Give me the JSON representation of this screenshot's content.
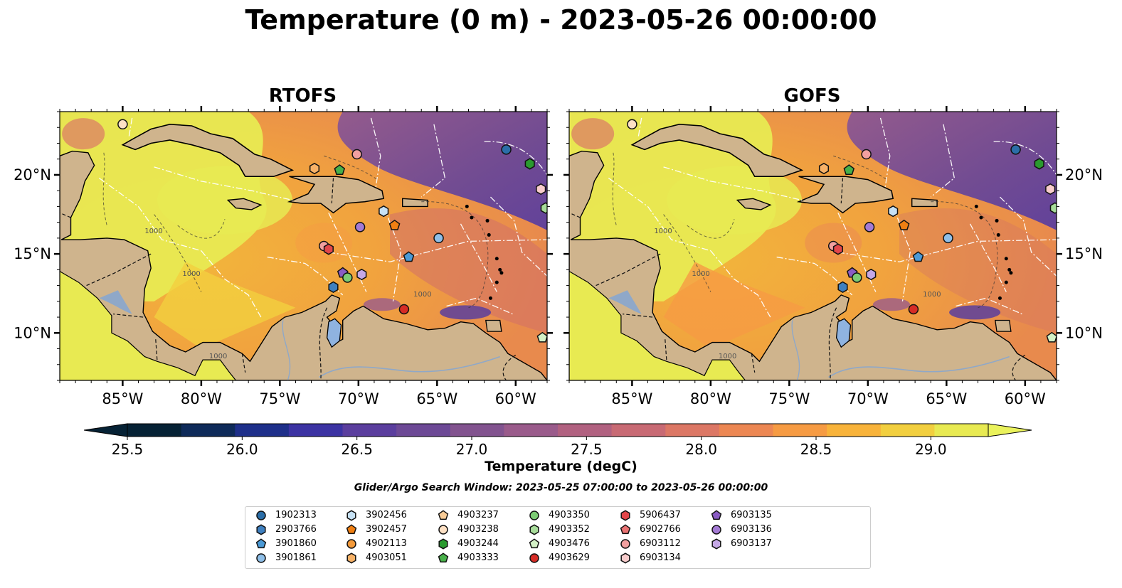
{
  "title": "Temperature (0 m) - 2023-05-26 00:00:00",
  "panels": [
    {
      "title": "RTOFS"
    },
    {
      "title": "GOFS"
    }
  ],
  "map": {
    "lon_range": [
      -89,
      -58
    ],
    "lat_range": [
      7,
      24
    ],
    "lon_ticks": [
      "85°W",
      "80°W",
      "75°W",
      "70°W",
      "65°W",
      "60°W"
    ],
    "lat_ticks": [
      "20°N",
      "15°N",
      "10°N"
    ],
    "land_color": "#cfb48d",
    "isobath_labels": [
      "1000",
      "1000",
      "1000",
      "1000"
    ]
  },
  "colorbar": {
    "label": "Temperature (degC)",
    "ticks": [
      "25.5",
      "26.0",
      "26.5",
      "27.0",
      "27.5",
      "28.0",
      "28.5",
      "29.0"
    ],
    "range": [
      25.5,
      29.25
    ],
    "colors": [
      "#062235",
      "#0e2a59",
      "#1e2f8a",
      "#3c33a3",
      "#5b3e9e",
      "#6d4996",
      "#82538f",
      "#9a5b8b",
      "#b16180",
      "#c86a74",
      "#dc7765",
      "#ec8753",
      "#f69b43",
      "#f8b33a",
      "#f2cf3f",
      "#e8ea52"
    ]
  },
  "search_window": "Glider/Argo Search Window: 2023-05-25 07:00:00 to 2023-05-26 00:00:00",
  "legend": [
    {
      "id": "1902313",
      "color": "#2b6ea8",
      "shape": "circle"
    },
    {
      "id": "2903766",
      "color": "#3f80c0",
      "shape": "hexagon"
    },
    {
      "id": "3901860",
      "color": "#4b9ad6",
      "shape": "pentagon"
    },
    {
      "id": "3901861",
      "color": "#8fbfe8",
      "shape": "circle"
    },
    {
      "id": "3902456",
      "color": "#c7e2f5",
      "shape": "hexagon"
    },
    {
      "id": "3902457",
      "color": "#f07f12",
      "shape": "pentagon"
    },
    {
      "id": "4902113",
      "color": "#f49a3a",
      "shape": "circle"
    },
    {
      "id": "4903051",
      "color": "#f8b267",
      "shape": "hexagon"
    },
    {
      "id": "4903237",
      "color": "#f9cc97",
      "shape": "pentagon"
    },
    {
      "id": "4903238",
      "color": "#fde0c4",
      "shape": "circle"
    },
    {
      "id": "4903244",
      "color": "#2a9a2f",
      "shape": "hexagon"
    },
    {
      "id": "4903333",
      "color": "#48b04a",
      "shape": "pentagon"
    },
    {
      "id": "4903350",
      "color": "#7ccb74",
      "shape": "circle"
    },
    {
      "id": "4903352",
      "color": "#a7dc9a",
      "shape": "hexagon"
    },
    {
      "id": "4903476",
      "color": "#d3f0c6",
      "shape": "pentagon"
    },
    {
      "id": "4903629",
      "color": "#d62c26",
      "shape": "circle"
    },
    {
      "id": "5906437",
      "color": "#e2464a",
      "shape": "hexagon"
    },
    {
      "id": "6902766",
      "color": "#ea7373",
      "shape": "pentagon"
    },
    {
      "id": "6903112",
      "color": "#f2a0a0",
      "shape": "circle"
    },
    {
      "id": "6903134",
      "color": "#f8cccc",
      "shape": "hexagon"
    },
    {
      "id": "6903135",
      "color": "#8a5cc4",
      "shape": "pentagon"
    },
    {
      "id": "6903136",
      "color": "#a47ad4",
      "shape": "circle"
    },
    {
      "id": "6903137",
      "color": "#c5a8e6",
      "shape": "hexagon"
    }
  ],
  "floats": [
    {
      "id": "4903238",
      "lon": -85.0,
      "lat": 23.2
    },
    {
      "id": "1902313",
      "lon": -60.6,
      "lat": 21.6
    },
    {
      "id": "4903244",
      "lon": -59.1,
      "lat": 20.7
    },
    {
      "id": "4903051",
      "lon": -72.8,
      "lat": 20.4
    },
    {
      "id": "4903333",
      "lon": -71.2,
      "lat": 20.3
    },
    {
      "id": "6903112",
      "lon": -70.1,
      "lat": 21.3
    },
    {
      "id": "6903134",
      "lon": -58.4,
      "lat": 19.1
    },
    {
      "id": "4903352",
      "lon": -58.1,
      "lat": 17.9
    },
    {
      "id": "3902456",
      "lon": -68.4,
      "lat": 17.7
    },
    {
      "id": "3902457",
      "lon": -67.7,
      "lat": 16.8
    },
    {
      "id": "6903136",
      "lon": -69.9,
      "lat": 16.7
    },
    {
      "id": "3901861",
      "lon": -64.9,
      "lat": 16.0
    },
    {
      "id": "6903112",
      "lon": -72.2,
      "lat": 15.5
    },
    {
      "id": "5906437",
      "lon": -71.9,
      "lat": 15.3
    },
    {
      "id": "3901860",
      "lon": -66.8,
      "lat": 14.8
    },
    {
      "id": "6903135",
      "lon": -71.0,
      "lat": 13.8
    },
    {
      "id": "6903137",
      "lon": -69.8,
      "lat": 13.7
    },
    {
      "id": "4903350",
      "lon": -70.7,
      "lat": 13.5
    },
    {
      "id": "2903766",
      "lon": -71.6,
      "lat": 12.9
    },
    {
      "id": "4903629",
      "lon": -67.1,
      "lat": 11.5
    },
    {
      "id": "4903476",
      "lon": -58.3,
      "lat": 9.7
    }
  ]
}
